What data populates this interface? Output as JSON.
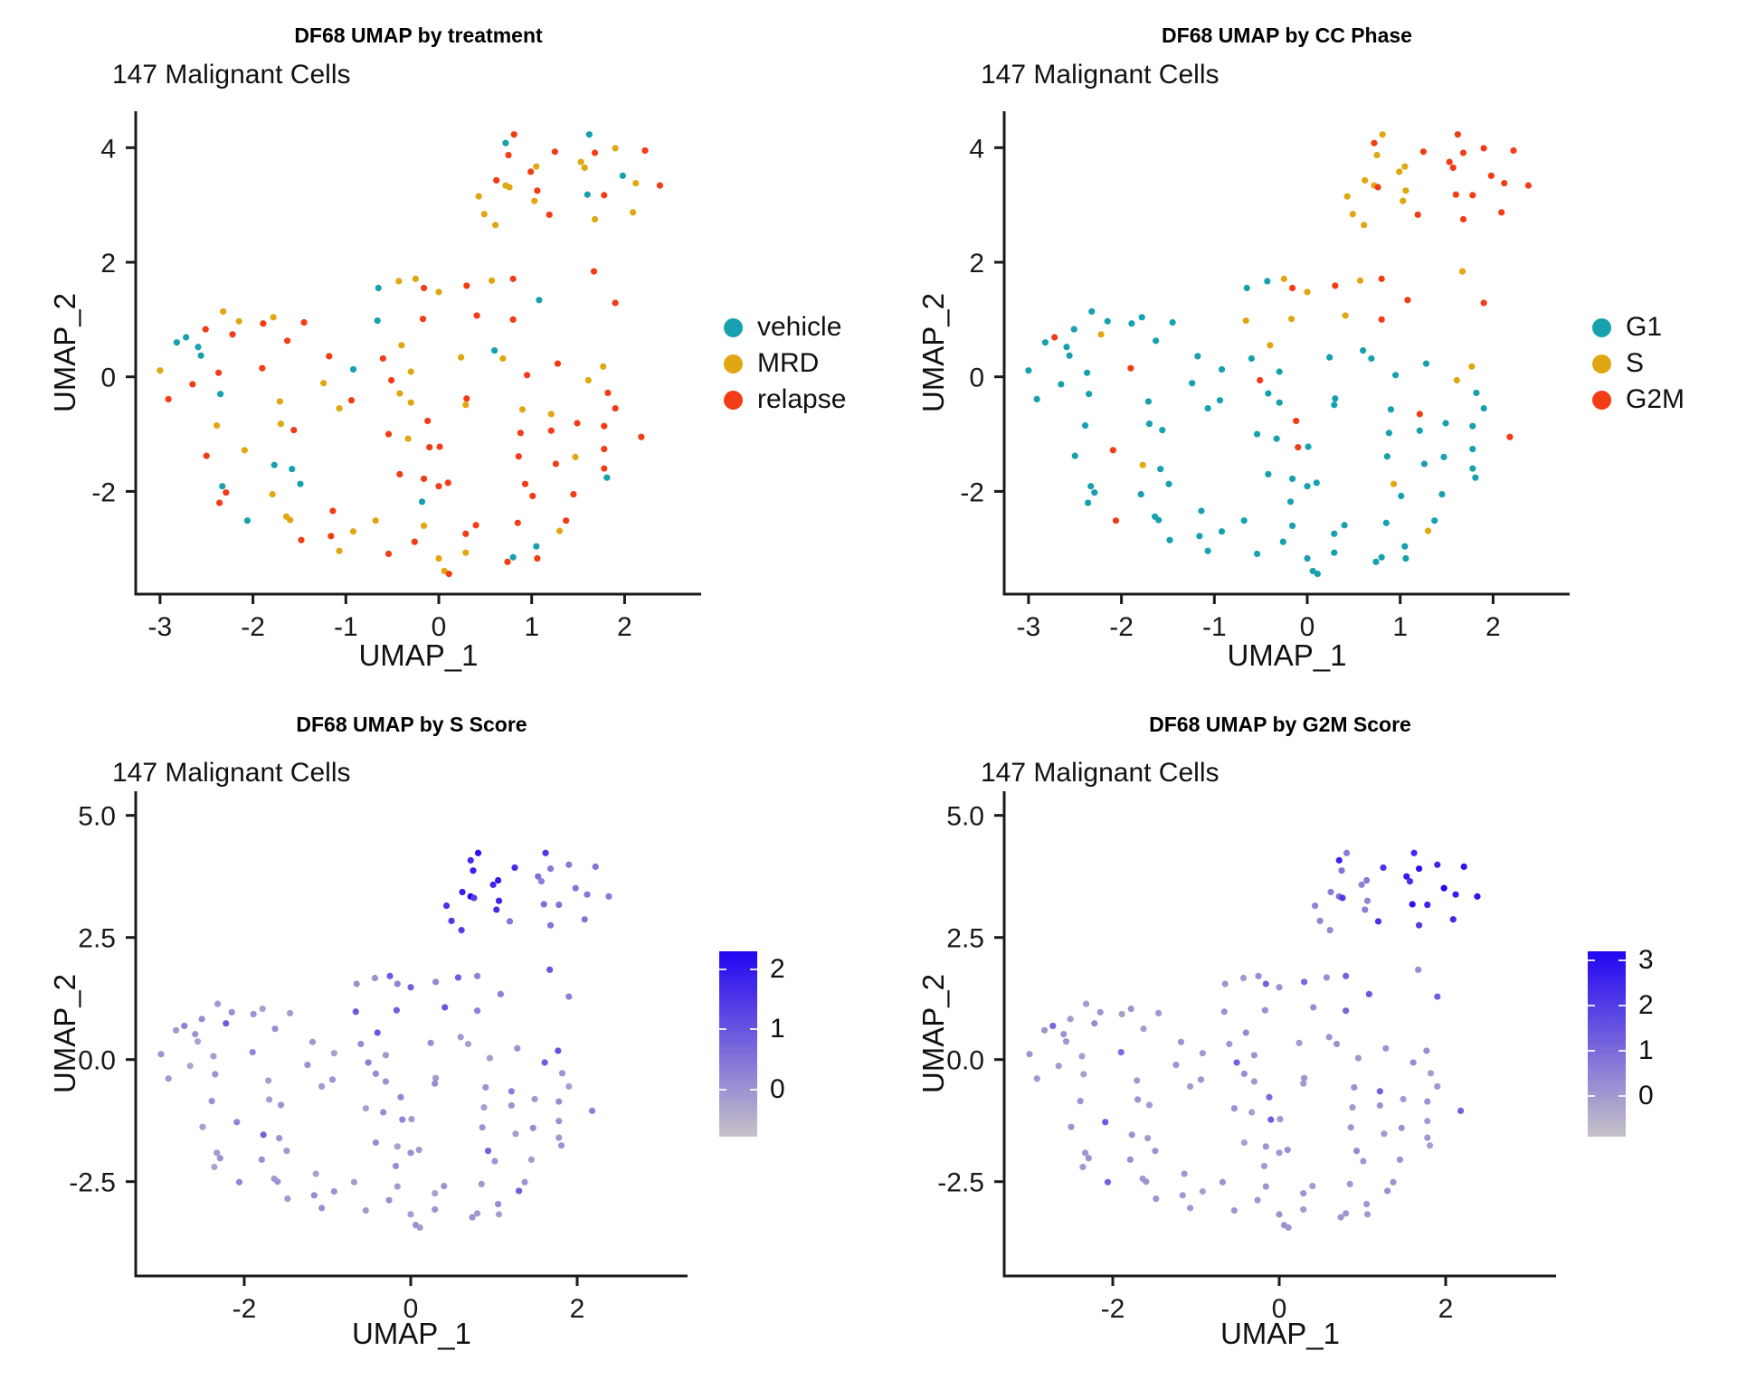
{
  "figure": {
    "background": "#ffffff",
    "axis_color": "#1a1a1a",
    "text_color": "#111111"
  },
  "chart_data": {
    "type": "scatter",
    "n_cells_label": "147 Malignant Cells",
    "category_colors": {
      "vehicle": "#17a0ae",
      "MRD": "#e0a712",
      "relapse": "#f23c16",
      "G1": "#17a0ae",
      "S": "#e0a712",
      "G2M": "#f23c16"
    },
    "gradient": {
      "low": "#c7c2c7",
      "high": "#2206f2"
    },
    "panels": [
      {
        "title": "DF68 UMAP by treatment",
        "subtitle": "147 Malignant Cells",
        "xlabel": "UMAP_1",
        "ylabel": "UMAP_2",
        "color_by": "treatment",
        "x_ticks": [
          "-3",
          "-2",
          "-1",
          "0",
          "1",
          "2"
        ],
        "x_tick_values": [
          -3,
          -2,
          -1,
          0,
          1,
          2
        ],
        "y_ticks": [
          "4",
          "2",
          "0",
          "-2"
        ],
        "y_tick_values": [
          4,
          2,
          0,
          -2
        ],
        "xlim": [
          -3.26,
          2.82
        ],
        "ylim": [
          -3.8,
          4.64
        ],
        "legend": [
          {
            "label": "vehicle",
            "color": "#17a0ae"
          },
          {
            "label": "MRD",
            "color": "#e0a712"
          },
          {
            "label": "relapse",
            "color": "#f23c16"
          }
        ]
      },
      {
        "title": "DF68 UMAP by CC Phase",
        "subtitle": "147 Malignant Cells",
        "xlabel": "UMAP_1",
        "ylabel": "UMAP_2",
        "color_by": "phase",
        "x_ticks": [
          "-3",
          "-2",
          "-1",
          "0",
          "1",
          "2"
        ],
        "x_tick_values": [
          -3,
          -2,
          -1,
          0,
          1,
          2
        ],
        "y_ticks": [
          "4",
          "2",
          "0",
          "-2"
        ],
        "y_tick_values": [
          4,
          2,
          0,
          -2
        ],
        "xlim": [
          -3.26,
          2.82
        ],
        "ylim": [
          -3.8,
          4.64
        ],
        "legend": [
          {
            "label": "G1",
            "color": "#17a0ae"
          },
          {
            "label": "S",
            "color": "#e0a712"
          },
          {
            "label": "G2M",
            "color": "#f23c16"
          }
        ]
      },
      {
        "title": "DF68 UMAP by S Score",
        "subtitle": "147 Malignant Cells",
        "xlabel": "UMAP_1",
        "ylabel": "UMAP_2",
        "color_by": "s_score",
        "x_ticks": [
          "-2",
          "0",
          "2"
        ],
        "x_tick_values": [
          -2,
          0,
          2
        ],
        "y_ticks": [
          "5.0",
          "2.5",
          "0.0",
          "-2.5"
        ],
        "y_tick_values": [
          5,
          2.5,
          0,
          -2.5
        ],
        "xlim": [
          -3.3,
          3.33
        ],
        "ylim": [
          -4.43,
          5.49
        ],
        "colorbar": {
          "tick_labels": [
            "2",
            "1",
            "0"
          ],
          "tick_values": [
            2,
            1,
            0
          ],
          "min": -0.78,
          "max": 2.3,
          "low": "#c7c2c7",
          "high": "#2206f2"
        }
      },
      {
        "title": "DF68 UMAP by G2M Score",
        "subtitle": "147 Malignant Cells",
        "xlabel": "UMAP_1",
        "ylabel": "UMAP_2",
        "color_by": "g2m_score",
        "x_ticks": [
          "-2",
          "0",
          "2"
        ],
        "x_tick_values": [
          -2,
          0,
          2
        ],
        "y_ticks": [
          "5.0",
          "2.5",
          "0.0",
          "-2.5"
        ],
        "y_tick_values": [
          5,
          2.5,
          0,
          -2.5
        ],
        "xlim": [
          -3.3,
          3.33
        ],
        "ylim": [
          -4.43,
          5.49
        ],
        "colorbar": {
          "tick_labels": [
            "3",
            "2",
            "1",
            "0"
          ],
          "tick_values": [
            3,
            2,
            1,
            0
          ],
          "min": -0.9,
          "max": 3.2,
          "low": "#c7c2c7",
          "high": "#2206f2"
        }
      }
    ],
    "point_fields": [
      "umap_1",
      "umap_2",
      "treatment",
      "phase",
      "s_score",
      "g2m_score"
    ],
    "treatment_codes": {
      "v": "vehicle",
      "m": "MRD",
      "r": "relapse"
    },
    "points": [
      [
        0.81,
        4.23,
        "r",
        "S",
        2.1,
        0.6
      ],
      [
        0.72,
        4.08,
        "v",
        "G2M",
        1.7,
        2.6
      ],
      [
        1.62,
        4.23,
        "v",
        "G2M",
        1.5,
        2.4
      ],
      [
        2.22,
        3.95,
        "r",
        "G2M",
        0.5,
        2.9
      ],
      [
        1.25,
        3.93,
        "r",
        "G2M",
        1.7,
        2.2
      ],
      [
        1.68,
        3.91,
        "r",
        "G2M",
        0.45,
        3.0
      ],
      [
        1.9,
        3.99,
        "m",
        "G2M",
        0.4,
        2.5
      ],
      [
        0.75,
        3.87,
        "r",
        "S",
        1.9,
        0.8
      ],
      [
        1.53,
        3.75,
        "m",
        "G2M",
        0.55,
        2.8
      ],
      [
        1.57,
        3.65,
        "m",
        "G2M",
        0.35,
        2.3
      ],
      [
        1.05,
        3.67,
        "m",
        "S",
        2.0,
        0.7
      ],
      [
        0.99,
        3.58,
        "r",
        "S",
        1.8,
        0.5
      ],
      [
        1.98,
        3.51,
        "v",
        "G2M",
        0.5,
        3.2
      ],
      [
        0.62,
        3.43,
        "r",
        "S",
        1.9,
        0.6
      ],
      [
        2.12,
        3.38,
        "m",
        "G2M",
        0.45,
        2.7
      ],
      [
        2.38,
        3.34,
        "r",
        "G2M",
        0.4,
        2.9
      ],
      [
        0.72,
        3.34,
        "m",
        "S",
        2.3,
        0.9
      ],
      [
        0.76,
        3.31,
        "m",
        "G2M",
        1.4,
        2.1
      ],
      [
        1.06,
        3.25,
        "r",
        "S",
        1.8,
        0.4
      ],
      [
        1.6,
        3.18,
        "v",
        "G2M",
        0.6,
        3.0
      ],
      [
        1.78,
        3.17,
        "r",
        "G2M",
        0.5,
        2.6
      ],
      [
        0.43,
        3.15,
        "m",
        "S",
        1.6,
        0.5
      ],
      [
        1.03,
        3.07,
        "m",
        "S",
        1.7,
        0.6
      ],
      [
        1.19,
        2.83,
        "r",
        "G2M",
        0.5,
        2.2
      ],
      [
        0.49,
        2.84,
        "m",
        "S",
        1.5,
        0.4
      ],
      [
        2.09,
        2.87,
        "m",
        "G2M",
        0.45,
        2.4
      ],
      [
        1.68,
        2.75,
        "m",
        "G2M",
        0.5,
        2.0
      ],
      [
        0.61,
        2.65,
        "m",
        "S",
        1.4,
        0.35
      ],
      [
        1.67,
        1.84,
        "r",
        "S",
        1.0,
        0.3
      ],
      [
        1.9,
        1.29,
        "r",
        "G2M",
        0.3,
        1.3
      ],
      [
        0.8,
        1.71,
        "r",
        "G2M",
        0.25,
        1.2
      ],
      [
        0.57,
        1.68,
        "m",
        "S",
        0.9,
        0.25
      ],
      [
        0.3,
        1.59,
        "r",
        "G2M",
        0.2,
        1.1
      ],
      [
        0.0,
        1.48,
        "m",
        "S",
        0.85,
        0.2
      ],
      [
        1.08,
        1.34,
        "v",
        "G2M",
        0.3,
        1.4
      ],
      [
        -0.65,
        1.55,
        "v",
        "G1",
        0.05,
        0.1
      ],
      [
        -0.43,
        1.67,
        "m",
        "G1",
        0.0,
        0.05
      ],
      [
        -0.25,
        1.71,
        "m",
        "S",
        0.9,
        0.3
      ],
      [
        -0.16,
        1.55,
        "r",
        "G2M",
        0.25,
        1.2
      ],
      [
        -2.32,
        1.14,
        "m",
        "G1",
        -0.1,
        0.0
      ],
      [
        -2.15,
        0.97,
        "m",
        "G1",
        0.05,
        0.15
      ],
      [
        -1.78,
        1.04,
        "m",
        "G1",
        -0.2,
        0.1
      ],
      [
        -1.89,
        0.93,
        "r",
        "G1",
        0.0,
        -0.1
      ],
      [
        -1.45,
        0.95,
        "r",
        "G1",
        -0.15,
        0.05
      ],
      [
        -0.66,
        0.98,
        "v",
        "S",
        0.95,
        0.2
      ],
      [
        -2.51,
        0.83,
        "r",
        "G1",
        0.1,
        0.0
      ],
      [
        -2.22,
        0.74,
        "r",
        "S",
        0.9,
        0.3
      ],
      [
        -2.82,
        0.6,
        "v",
        "G1",
        -0.1,
        0.1
      ],
      [
        -2.72,
        0.69,
        "v",
        "G2M",
        0.3,
        1.1
      ],
      [
        -2.59,
        0.52,
        "v",
        "G1",
        0.0,
        0.2
      ],
      [
        -2.56,
        0.37,
        "v",
        "G1",
        -0.25,
        0.05
      ],
      [
        -1.63,
        0.63,
        "r",
        "G1",
        0.05,
        -0.1
      ],
      [
        -0.4,
        0.55,
        "m",
        "S",
        1.0,
        0.35
      ],
      [
        -1.18,
        0.36,
        "r",
        "G1",
        -0.1,
        0.15
      ],
      [
        -0.6,
        0.32,
        "r",
        "G1",
        0.1,
        0.05
      ],
      [
        -0.92,
        0.13,
        "v",
        "G1",
        -0.2,
        0.0
      ],
      [
        -3.0,
        0.11,
        "m",
        "G1",
        0.0,
        0.1
      ],
      [
        -2.37,
        0.07,
        "r",
        "G1",
        -0.15,
        -0.1
      ],
      [
        -1.9,
        0.15,
        "r",
        "G2M",
        0.2,
        1.0
      ],
      [
        -2.65,
        -0.13,
        "r",
        "G1",
        -0.3,
        0.0
      ],
      [
        -1.24,
        -0.11,
        "m",
        "G1",
        0.05,
        0.1
      ],
      [
        -0.51,
        -0.06,
        "r",
        "G2M",
        0.3,
        1.2
      ],
      [
        -2.35,
        -0.3,
        "v",
        "G1",
        0.0,
        -0.15
      ],
      [
        -2.91,
        -0.39,
        "r",
        "G1",
        -0.1,
        0.05
      ],
      [
        -0.42,
        -0.29,
        "m",
        "G1",
        0.1,
        0.2
      ],
      [
        -1.71,
        -0.43,
        "m",
        "G1",
        -0.2,
        0.0
      ],
      [
        -0.94,
        -0.41,
        "r",
        "G1",
        0.0,
        0.1
      ],
      [
        -1.07,
        -0.55,
        "m",
        "G1",
        -0.1,
        -0.05
      ],
      [
        -2.39,
        -0.85,
        "m",
        "G1",
        0.05,
        0.15
      ],
      [
        -1.7,
        -0.82,
        "m",
        "G1",
        -0.15,
        0.1
      ],
      [
        -1.56,
        -0.93,
        "r",
        "G1",
        0.0,
        0.0
      ],
      [
        -0.54,
        -1.0,
        "r",
        "G1",
        -0.2,
        0.2
      ],
      [
        -0.33,
        -1.08,
        "m",
        "G1",
        0.1,
        -0.1
      ],
      [
        -2.09,
        -1.28,
        "m",
        "G2M",
        0.25,
        1.3
      ],
      [
        -0.3,
        0.09,
        "m",
        "G1",
        -0.1,
        0.1
      ],
      [
        -0.3,
        -0.45,
        "m",
        "G1",
        0.0,
        0.05
      ],
      [
        -0.17,
        1.01,
        "r",
        "S",
        0.85,
        0.25
      ],
      [
        0.41,
        1.07,
        "r",
        "S",
        1.0,
        0.3
      ],
      [
        0.8,
        1.0,
        "r",
        "G2M",
        0.3,
        1.1
      ],
      [
        0.6,
        0.46,
        "v",
        "G1",
        -0.1,
        0.1
      ],
      [
        0.24,
        0.34,
        "m",
        "G1",
        0.05,
        0.0
      ],
      [
        0.69,
        0.32,
        "m",
        "G1",
        -0.2,
        0.15
      ],
      [
        1.28,
        0.23,
        "r",
        "G1",
        0.0,
        0.1
      ],
      [
        0.95,
        0.03,
        "r",
        "G1",
        -0.15,
        0.05
      ],
      [
        1.61,
        -0.06,
        "m",
        "S",
        0.9,
        0.3
      ],
      [
        1.77,
        0.18,
        "m",
        "S",
        1.05,
        0.2
      ],
      [
        1.82,
        -0.28,
        "r",
        "G1",
        0.0,
        -0.1
      ],
      [
        0.3,
        -0.38,
        "r",
        "G1",
        -0.1,
        0.1
      ],
      [
        0.29,
        -0.49,
        "m",
        "G1",
        0.1,
        0.0
      ],
      [
        1.9,
        -0.55,
        "r",
        "G1",
        -0.2,
        0.1
      ],
      [
        0.9,
        -0.57,
        "m",
        "G1",
        0.0,
        0.2
      ],
      [
        1.21,
        -0.65,
        "m",
        "G2M",
        0.35,
        1.25
      ],
      [
        -0.12,
        -0.77,
        "r",
        "G2M",
        0.2,
        1.0
      ],
      [
        1.49,
        -0.81,
        "r",
        "G1",
        -0.1,
        0.0
      ],
      [
        1.78,
        -0.86,
        "r",
        "G1",
        0.05,
        0.1
      ],
      [
        0.88,
        -0.98,
        "r",
        "G1",
        -0.15,
        0.0
      ],
      [
        1.21,
        -0.94,
        "r",
        "G1",
        0.0,
        0.15
      ],
      [
        2.18,
        -1.05,
        "r",
        "G2M",
        0.3,
        1.2
      ],
      [
        -0.1,
        -1.23,
        "r",
        "G2M",
        0.25,
        1.35
      ],
      [
        0.01,
        -1.22,
        "r",
        "G1",
        -0.1,
        0.05
      ],
      [
        1.78,
        -1.26,
        "r",
        "G1",
        0.0,
        -0.05
      ],
      [
        -2.5,
        -1.38,
        "r",
        "G1",
        -0.2,
        0.1
      ],
      [
        -1.77,
        -1.54,
        "v",
        "S",
        0.8,
        0.2
      ],
      [
        -1.58,
        -1.61,
        "v",
        "G1",
        0.0,
        0.0
      ],
      [
        -1.49,
        -1.87,
        "v",
        "G1",
        -0.1,
        0.15
      ],
      [
        -0.42,
        -1.7,
        "r",
        "G1",
        0.1,
        -0.1
      ],
      [
        -2.33,
        -1.91,
        "v",
        "G1",
        -0.15,
        0.05
      ],
      [
        -2.29,
        -2.02,
        "r",
        "G1",
        0.0,
        0.1
      ],
      [
        -2.36,
        -2.2,
        "r",
        "G1",
        -0.25,
        0.0
      ],
      [
        -1.79,
        -2.05,
        "m",
        "G1",
        0.05,
        0.2
      ],
      [
        -1.64,
        -2.44,
        "m",
        "G1",
        -0.1,
        0.0
      ],
      [
        -1.6,
        -2.5,
        "m",
        "G1",
        0.0,
        0.1
      ],
      [
        -2.06,
        -2.51,
        "v",
        "G2M",
        0.2,
        1.15
      ],
      [
        -1.14,
        -2.34,
        "r",
        "G1",
        -0.2,
        0.05
      ],
      [
        -1.16,
        -2.78,
        "r",
        "G1",
        0.1,
        0.0
      ],
      [
        -1.48,
        -2.85,
        "r",
        "G1",
        -0.1,
        0.1
      ],
      [
        -0.92,
        -2.7,
        "m",
        "G1",
        0.0,
        -0.1
      ],
      [
        -0.68,
        -2.51,
        "m",
        "G1",
        -0.15,
        0.15
      ],
      [
        -1.07,
        -3.04,
        "m",
        "G1",
        0.05,
        0.0
      ],
      [
        -0.54,
        -3.09,
        "r",
        "G1",
        -0.1,
        0.1
      ],
      [
        0.86,
        -1.39,
        "r",
        "G1",
        0.0,
        0.1
      ],
      [
        1.26,
        -1.52,
        "r",
        "G1",
        -0.15,
        0.0
      ],
      [
        1.47,
        -1.4,
        "m",
        "G1",
        0.1,
        0.15
      ],
      [
        1.78,
        -1.6,
        "r",
        "G1",
        -0.1,
        0.05
      ],
      [
        1.81,
        -1.76,
        "v",
        "G1",
        0.0,
        -0.1
      ],
      [
        -0.16,
        -1.78,
        "r",
        "G1",
        -0.2,
        0.1
      ],
      [
        0.0,
        -1.91,
        "r",
        "G1",
        0.05,
        0.0
      ],
      [
        0.1,
        -1.85,
        "r",
        "G1",
        -0.1,
        0.2
      ],
      [
        0.93,
        -1.87,
        "r",
        "S",
        0.85,
        0.3
      ],
      [
        1.01,
        -2.08,
        "r",
        "G1",
        0.0,
        0.05
      ],
      [
        1.45,
        -2.05,
        "r",
        "G1",
        -0.15,
        0.1
      ],
      [
        -0.18,
        -2.18,
        "v",
        "G1",
        0.1,
        0.0
      ],
      [
        -0.16,
        -2.6,
        "m",
        "G1",
        -0.1,
        0.1
      ],
      [
        0.4,
        -2.59,
        "r",
        "G1",
        0.0,
        -0.05
      ],
      [
        0.29,
        -2.74,
        "r",
        "G1",
        -0.2,
        0.1
      ],
      [
        -0.26,
        -2.88,
        "r",
        "G1",
        0.05,
        0.05
      ],
      [
        0.85,
        -2.55,
        "r",
        "G1",
        -0.1,
        0.0
      ],
      [
        1.37,
        -2.51,
        "r",
        "G1",
        0.0,
        0.15
      ],
      [
        1.3,
        -2.69,
        "m",
        "S",
        0.9,
        0.25
      ],
      [
        0.0,
        -3.17,
        "m",
        "G1",
        -0.15,
        0.1
      ],
      [
        0.29,
        -3.07,
        "m",
        "G1",
        0.0,
        0.0
      ],
      [
        1.05,
        -2.96,
        "v",
        "G1",
        0.1,
        0.1
      ],
      [
        0.8,
        -3.15,
        "v",
        "G1",
        -0.1,
        0.05
      ],
      [
        0.74,
        -3.23,
        "r",
        "G1",
        0.0,
        0.1
      ],
      [
        1.06,
        -3.17,
        "r",
        "G1",
        -0.2,
        0.0
      ],
      [
        0.06,
        -3.39,
        "m",
        "G1",
        0.05,
        0.15
      ],
      [
        0.11,
        -3.44,
        "r",
        "G1",
        -0.1,
        0.05
      ]
    ]
  }
}
